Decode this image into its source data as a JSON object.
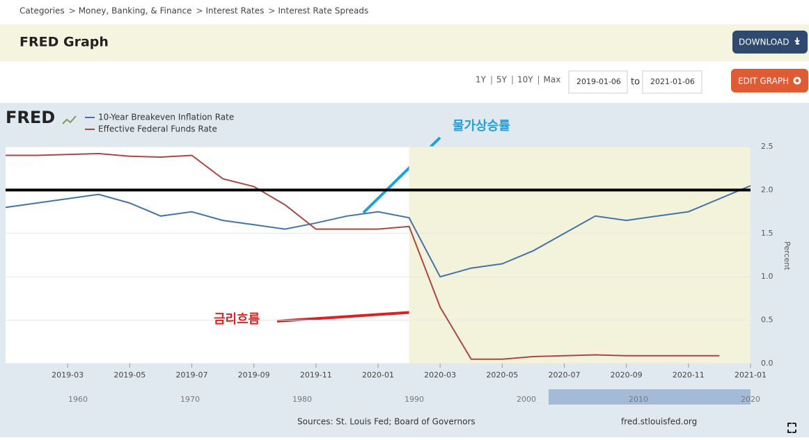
{
  "breadcrumb": [
    "Categories",
    "Money, Banking, & Finance",
    "Interest Rates",
    "Interest Rate Spreads"
  ],
  "header": {
    "title": "FRED Graph",
    "download": "DOWNLOAD"
  },
  "controls": {
    "ranges": [
      "1Y",
      "5Y",
      "10Y",
      "Max"
    ],
    "start": "2019-01-06",
    "to": "to",
    "end": "2021-01-06",
    "edit": "EDIT GRAPH"
  },
  "chart_data": {
    "type": "line",
    "logo": "FRED",
    "y_label": "Percent",
    "x": [
      "2019-01",
      "2019-02",
      "2019-03",
      "2019-04",
      "2019-05",
      "2019-06",
      "2019-07",
      "2019-08",
      "2019-09",
      "2019-10",
      "2019-11",
      "2019-12",
      "2020-01",
      "2020-02",
      "2020-03",
      "2020-04",
      "2020-05",
      "2020-06",
      "2020-07",
      "2020-08",
      "2020-09",
      "2020-10",
      "2020-11",
      "2020-12",
      "2021-01"
    ],
    "series": [
      {
        "name": "10-Year Breakeven Inflation Rate",
        "color": "#4572a7",
        "values": [
          1.8,
          1.85,
          1.9,
          1.95,
          1.85,
          1.7,
          1.75,
          1.65,
          1.6,
          1.55,
          1.62,
          1.7,
          1.75,
          1.68,
          1.0,
          1.1,
          1.15,
          1.3,
          1.5,
          1.7,
          1.65,
          1.7,
          1.75,
          1.9,
          2.05
        ]
      },
      {
        "name": "Effective Federal Funds Rate",
        "color": "#aa4643",
        "values": [
          2.4,
          2.4,
          2.41,
          2.42,
          2.39,
          2.38,
          2.4,
          2.13,
          2.04,
          1.83,
          1.55,
          1.55,
          1.55,
          1.58,
          0.65,
          0.05,
          0.05,
          0.08,
          0.09,
          0.1,
          0.09,
          0.09,
          0.09,
          0.09,
          null
        ]
      }
    ],
    "xticks": [
      "2019-03",
      "2019-05",
      "2019-07",
      "2019-09",
      "2019-11",
      "2020-01",
      "2020-03",
      "2020-05",
      "2020-07",
      "2020-09",
      "2020-11",
      "2021-01"
    ],
    "ylim": [
      0,
      2.5
    ],
    "yticks": [
      {
        "value": 0,
        "label": "0.0"
      },
      0.5,
      {
        "value": 1,
        "label": "1.0"
      },
      1.5,
      {
        "value": 2,
        "label": "2.0"
      },
      2.5
    ],
    "grid": true,
    "shading": {
      "from": "2020-02",
      "to": "2021-01"
    },
    "hline": 2,
    "annotations": [
      {
        "text": "물가상승률",
        "color": "#1ea0dc"
      },
      {
        "text": "금리흐름",
        "color": "#e02020"
      }
    ]
  },
  "navigator": {
    "labels": [
      "1960",
      "1970",
      "1980",
      "1990",
      "2000",
      "2010",
      "2020"
    ]
  },
  "footer": {
    "source": "Sources: St. Louis Fed; Board of Governors",
    "site": "fred.stlouisfed.org"
  }
}
